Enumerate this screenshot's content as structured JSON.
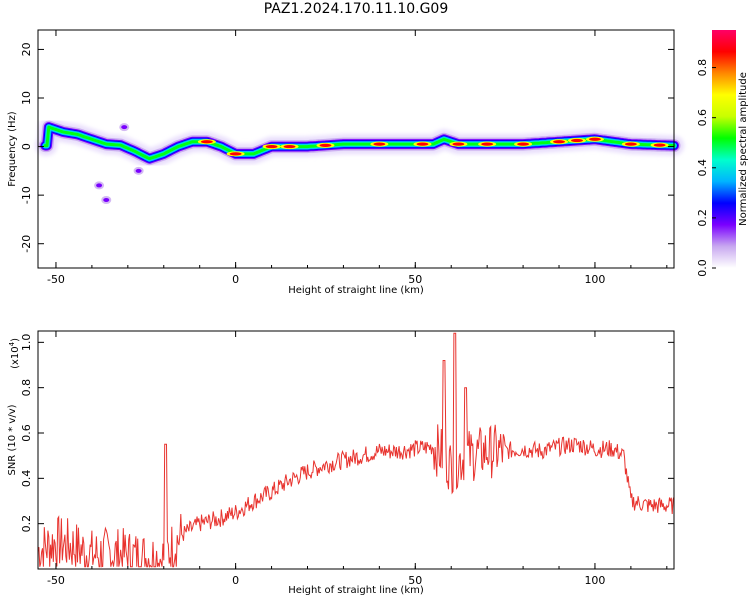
{
  "figure": {
    "title": "PAZ1.2024.170.11.10.G09"
  },
  "chart_data": [
    {
      "id": "spectrogram",
      "type": "heatmap",
      "xlabel": "Height of straight line (km)",
      "ylabel": "Frequency (Hz)",
      "xlim": [
        -55,
        122
      ],
      "ylim": [
        -25,
        24
      ],
      "xticks": [
        "-50",
        "0",
        "50",
        "100"
      ],
      "yticks": [
        "20",
        "10",
        "0",
        "-10",
        "-20"
      ],
      "ridge": {
        "x": [
          -52,
          -48,
          -44,
          -40,
          -36,
          -32,
          -28,
          -24,
          -20,
          -16,
          -12,
          -8,
          -4,
          0,
          5,
          10,
          20,
          30,
          40,
          50,
          55,
          58,
          62,
          70,
          80,
          90,
          100,
          110,
          122
        ],
        "freq": [
          4,
          3,
          2.5,
          1.5,
          0.5,
          0.3,
          -1,
          -2.5,
          -1.5,
          0,
          1,
          1,
          0,
          -1.5,
          -1.5,
          0,
          0,
          0.5,
          0.5,
          0.5,
          0.5,
          1.5,
          0.5,
          0.5,
          0.5,
          1,
          1.5,
          0.5,
          0.2
        ]
      },
      "colorbar": {
        "label": "Normalized spectral amplitude",
        "ticks": [
          "0.0",
          "0.2",
          "0.4",
          "0.6",
          "0.8"
        ],
        "colors": [
          "#ffffff",
          "#c8a8f0",
          "#7a00ff",
          "#0000ff",
          "#00b4ff",
          "#00ffcc",
          "#00ff00",
          "#c8ff00",
          "#ffff00",
          "#ff8800",
          "#ff0000",
          "#ff0066"
        ]
      }
    },
    {
      "id": "snr",
      "type": "line",
      "xlabel": "Height of straight line (km)",
      "ylabel": "SNR (10 * v/v)",
      "scale_label": "(x10",
      "scale_exp": "4",
      "xlim": [
        -55,
        122
      ],
      "ylim": [
        0,
        1.05
      ],
      "xticks": [
        "-50",
        "0",
        "50",
        "100"
      ],
      "yticks": [
        "1.0",
        "0.8",
        "0.6",
        "0.4",
        "0.2"
      ],
      "color": "#e8332e",
      "series": [
        {
          "x": [
            -55,
            -50,
            -45,
            -40,
            -35,
            -30,
            -25,
            -20,
            -15,
            -10,
            -5,
            0,
            5,
            10,
            15,
            20,
            25,
            30,
            35,
            40,
            45,
            50,
            55,
            58,
            60,
            62,
            65,
            70,
            75,
            80,
            85,
            90,
            95,
            100,
            105,
            108,
            110,
            115,
            122
          ],
          "y": [
            0.08,
            0.12,
            0.1,
            0.06,
            0.07,
            0.06,
            0.05,
            0.05,
            0.15,
            0.2,
            0.22,
            0.25,
            0.3,
            0.34,
            0.39,
            0.43,
            0.46,
            0.48,
            0.5,
            0.52,
            0.52,
            0.53,
            0.54,
            0.5,
            0.45,
            0.48,
            0.5,
            0.52,
            0.52,
            0.53,
            0.52,
            0.54,
            0.55,
            0.53,
            0.53,
            0.5,
            0.3,
            0.28,
            0.28
          ]
        }
      ]
    }
  ]
}
